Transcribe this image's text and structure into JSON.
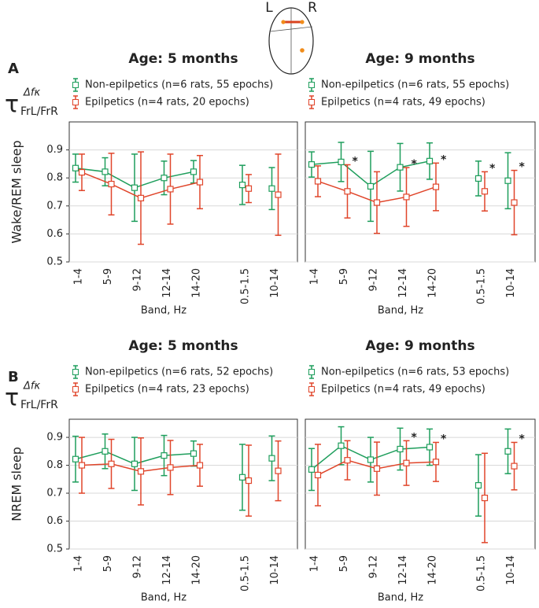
{
  "brain": {
    "left": "L",
    "right": "R"
  },
  "rows": [
    {
      "label": "A",
      "symbol": {
        "base": "τ",
        "sup": "Δfκ",
        "sub": "FrL/FrR"
      }
    },
    {
      "label": "B",
      "symbol": {
        "base": "τ",
        "sup": "Δfκ",
        "sub": "FrL/FrR"
      }
    }
  ],
  "chart_data": [
    {
      "type": "errorbar",
      "title": "Age: 5 months",
      "ylabel": "Wake/REM sleep",
      "xlabel": "Band, Hz",
      "category_groups": [
        [
          "1-4",
          "5-9",
          "9-12",
          "12-14",
          "14-20"
        ],
        [
          "0.5-1.5",
          "10-14"
        ]
      ],
      "connect": [
        true,
        false
      ],
      "ylim": [
        0.5,
        1.0
      ],
      "yticks": [
        0.5,
        0.6,
        0.7,
        0.8,
        0.9
      ],
      "grid": true,
      "series": [
        {
          "name": "Non-epilpetics (n=6 rats, 55 epochs)",
          "color": "#1e9e5c",
          "values": [
            [
              0.835,
              0.822,
              0.765,
              0.8,
              0.822
            ],
            [
              0.775,
              0.762
            ]
          ],
          "errors": [
            [
              0.05,
              0.05,
              0.12,
              0.06,
              0.04
            ],
            [
              0.07,
              0.075
            ]
          ]
        },
        {
          "name": "Epilpetics (n=4 rats, 20 epochs)",
          "color": "#e0452a",
          "values": [
            [
              0.82,
              0.778,
              0.728,
              0.76,
              0.785
            ],
            [
              0.762,
              0.74
            ]
          ],
          "errors": [
            [
              0.065,
              0.11,
              0.165,
              0.125,
              0.095
            ],
            [
              0.05,
              0.145
            ]
          ]
        }
      ]
    },
    {
      "type": "errorbar",
      "title": "Age: 9 months",
      "xlabel": "Band, Hz",
      "category_groups": [
        [
          "1-4",
          "5-9",
          "9-12",
          "12-14",
          "14-20"
        ],
        [
          "0.5-1.5",
          "10-14"
        ]
      ],
      "connect": [
        true,
        false
      ],
      "ylim": [
        0.5,
        1.0
      ],
      "yticks": [
        0.5,
        0.6,
        0.7,
        0.8,
        0.9
      ],
      "grid": true,
      "series": [
        {
          "name": "Non-epilpetics (n=6 rats, 55 epochs)",
          "color": "#1e9e5c",
          "values": [
            [
              0.848,
              0.857,
              0.77,
              0.838,
              0.86
            ],
            [
              0.798,
              0.79
            ]
          ],
          "errors": [
            [
              0.045,
              0.07,
              0.125,
              0.085,
              0.065
            ],
            [
              0.062,
              0.1
            ]
          ]
        },
        {
          "name": "Epilpetics (n=4 rats, 49 epochs)",
          "color": "#e0452a",
          "values": [
            [
              0.788,
              0.752,
              0.712,
              0.732,
              0.768
            ],
            [
              0.752,
              0.712
            ]
          ],
          "errors": [
            [
              0.055,
              0.095,
              0.11,
              0.105,
              0.085
            ],
            [
              0.07,
              0.115
            ]
          ],
          "annotations": [
            [
              null,
              "*",
              null,
              "*",
              "*"
            ],
            [
              "*",
              "*"
            ]
          ]
        }
      ]
    },
    {
      "type": "errorbar",
      "title": "Age: 5 months",
      "ylabel": "NREM sleep",
      "xlabel": "Band, Hz",
      "category_groups": [
        [
          "1-4",
          "5-9",
          "9-12",
          "12-14",
          "14-20"
        ],
        [
          "0.5-1.5",
          "10-14"
        ]
      ],
      "connect": [
        true,
        false
      ],
      "ylim": [
        0.5,
        0.965
      ],
      "yticks": [
        0.5,
        0.6,
        0.7,
        0.8,
        0.9
      ],
      "grid": true,
      "series": [
        {
          "name": "Non-epilpetics (n=6 rats, 52 epochs)",
          "color": "#1e9e5c",
          "values": [
            [
              0.822,
              0.85,
              0.805,
              0.835,
              0.842
            ],
            [
              0.757,
              0.825
            ]
          ],
          "errors": [
            [
              0.082,
              0.062,
              0.095,
              0.072,
              0.045
            ],
            [
              0.118,
              0.08
            ]
          ]
        },
        {
          "name": "Epilpetics (n=4 rats, 23 epochs)",
          "color": "#e0452a",
          "values": [
            [
              0.8,
              0.805,
              0.778,
              0.792,
              0.8
            ],
            [
              0.745,
              0.78
            ]
          ],
          "errors": [
            [
              0.1,
              0.088,
              0.12,
              0.097,
              0.075
            ],
            [
              0.127,
              0.107
            ]
          ]
        }
      ]
    },
    {
      "type": "errorbar",
      "title": "Age: 9 months",
      "xlabel": "Band, Hz",
      "category_groups": [
        [
          "1-4",
          "5-9",
          "9-12",
          "12-14",
          "14-20"
        ],
        [
          "0.5-1.5",
          "10-14"
        ]
      ],
      "connect": [
        true,
        false
      ],
      "ylim": [
        0.5,
        0.965
      ],
      "yticks": [
        0.5,
        0.6,
        0.7,
        0.8,
        0.9
      ],
      "grid": true,
      "series": [
        {
          "name": "Non-epilpetics (n=6 rats, 53 epochs)",
          "color": "#1e9e5c",
          "values": [
            [
              0.785,
              0.87,
              0.82,
              0.858,
              0.865
            ],
            [
              0.728,
              0.85
            ]
          ],
          "errors": [
            [
              0.075,
              0.068,
              0.08,
              0.075,
              0.065
            ],
            [
              0.11,
              0.08
            ]
          ]
        },
        {
          "name": "Epilpetics (n=4 rats, 49 epochs)",
          "color": "#e0452a",
          "values": [
            [
              0.765,
              0.818,
              0.788,
              0.808,
              0.812
            ],
            [
              0.683,
              0.797
            ]
          ],
          "errors": [
            [
              0.11,
              0.07,
              0.095,
              0.08,
              0.07
            ],
            [
              0.16,
              0.085
            ]
          ],
          "annotations": [
            [
              null,
              null,
              null,
              "*",
              "*"
            ],
            [
              null,
              "*"
            ]
          ]
        }
      ]
    }
  ]
}
